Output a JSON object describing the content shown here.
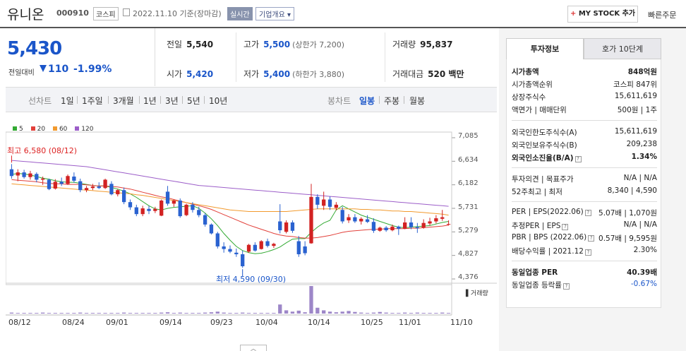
{
  "header": {
    "stock_name": "유니온",
    "stock_code": "000910",
    "market": "코스피",
    "date": "2022.11.10 기준(장마감)",
    "live_label": "실시간",
    "company_label": "기업개요 ▾",
    "mystock_label": "MY STOCK 추가",
    "quick_order": "빠른주문"
  },
  "price": {
    "current": "5,430",
    "change_label": "전일대비",
    "change": "110",
    "change_pct": "-1.99%",
    "colors": {
      "down": "#1a55c9",
      "up": "#d22222"
    }
  },
  "stats": {
    "prev_label": "전일",
    "prev": "5,540",
    "high_label": "고가",
    "high": "5,500",
    "upper_limit": "(상한가 7,200)",
    "volume_label": "거래량",
    "volume": "95,837",
    "open_label": "시가",
    "open": "5,420",
    "low_label": "저가",
    "low": "5,400",
    "lower_limit": "(하한가 3,880)",
    "amount_label": "거래대금",
    "amount": "520 백만"
  },
  "tabs": {
    "line_label": "선차트",
    "periods": [
      "1일",
      "1주일",
      "3개월",
      "1년",
      "3년",
      "5년",
      "10년"
    ],
    "candle_label": "봉차트",
    "candles": [
      "일봉",
      "주봉",
      "월봉"
    ],
    "selected_candle": "일봉"
  },
  "chart_data": {
    "type": "candlestick",
    "legend": [
      {
        "name": "5",
        "color": "#33aa33"
      },
      {
        "name": "20",
        "color": "#e2403a"
      },
      {
        "name": "60",
        "color": "#f29a2e"
      },
      {
        "name": "120",
        "color": "#9c5ec9"
      }
    ],
    "y_ticks": [
      "7,085",
      "6,634",
      "6,182",
      "5,731",
      "5,279",
      "4,827",
      "4,376"
    ],
    "ylim": [
      4376,
      7085
    ],
    "x_ticks": [
      "08/12",
      "08/24",
      "09/01",
      "09/14",
      "09/23",
      "10/04",
      "10/14",
      "10/25",
      "11/01",
      "11/10"
    ],
    "high_label": "최고 6,580 (08/12)",
    "low_label": "최저 4,590 (09/30)",
    "volume_label": "거래량",
    "candles": [
      {
        "o": 6480,
        "h": 6580,
        "l": 6300,
        "c": 6350
      },
      {
        "o": 6360,
        "h": 6480,
        "l": 6250,
        "c": 6420
      },
      {
        "o": 6420,
        "h": 6470,
        "l": 6300,
        "c": 6330
      },
      {
        "o": 6330,
        "h": 6450,
        "l": 6280,
        "c": 6400
      },
      {
        "o": 6390,
        "h": 6420,
        "l": 6230,
        "c": 6280
      },
      {
        "o": 6280,
        "h": 6340,
        "l": 6180,
        "c": 6300
      },
      {
        "o": 6280,
        "h": 6300,
        "l": 6080,
        "c": 6100
      },
      {
        "o": 6110,
        "h": 6290,
        "l": 6090,
        "c": 6240
      },
      {
        "o": 6240,
        "h": 6320,
        "l": 6160,
        "c": 6200
      },
      {
        "o": 6200,
        "h": 6380,
        "l": 6180,
        "c": 6350
      },
      {
        "o": 6340,
        "h": 6420,
        "l": 6220,
        "c": 6260
      },
      {
        "o": 6250,
        "h": 6300,
        "l": 6040,
        "c": 6080
      },
      {
        "o": 6080,
        "h": 6160,
        "l": 6040,
        "c": 6120
      },
      {
        "o": 6120,
        "h": 6200,
        "l": 6080,
        "c": 6150
      },
      {
        "o": 6150,
        "h": 6230,
        "l": 6100,
        "c": 6120
      },
      {
        "o": 6120,
        "h": 6300,
        "l": 6100,
        "c": 6280
      },
      {
        "o": 6200,
        "h": 6250,
        "l": 5980,
        "c": 6000
      },
      {
        "o": 6000,
        "h": 6100,
        "l": 5960,
        "c": 6080
      },
      {
        "o": 6080,
        "h": 6130,
        "l": 5810,
        "c": 5850
      },
      {
        "o": 5850,
        "h": 5900,
        "l": 5700,
        "c": 5750
      },
      {
        "o": 5750,
        "h": 5800,
        "l": 5580,
        "c": 5620
      },
      {
        "o": 5620,
        "h": 5780,
        "l": 5580,
        "c": 5730
      },
      {
        "o": 5720,
        "h": 5780,
        "l": 5620,
        "c": 5680
      },
      {
        "o": 5680,
        "h": 5760,
        "l": 5640,
        "c": 5720
      },
      {
        "o": 5590,
        "h": 5900,
        "l": 5580,
        "c": 5880
      },
      {
        "o": 6050,
        "h": 6160,
        "l": 5780,
        "c": 5820
      },
      {
        "o": 5820,
        "h": 5900,
        "l": 5760,
        "c": 5880
      },
      {
        "o": 5880,
        "h": 5920,
        "l": 5550,
        "c": 5580
      },
      {
        "o": 5600,
        "h": 5820,
        "l": 5580,
        "c": 5800
      },
      {
        "o": 5800,
        "h": 5850,
        "l": 5650,
        "c": 5700
      },
      {
        "o": 5700,
        "h": 5760,
        "l": 5560,
        "c": 5600
      },
      {
        "o": 5600,
        "h": 5640,
        "l": 5380,
        "c": 5420
      },
      {
        "o": 5420,
        "h": 5440,
        "l": 5230,
        "c": 5250
      },
      {
        "o": 5250,
        "h": 5280,
        "l": 4960,
        "c": 5000
      },
      {
        "o": 5000,
        "h": 5080,
        "l": 4880,
        "c": 4950
      },
      {
        "o": 4950,
        "h": 5020,
        "l": 4870,
        "c": 4900
      },
      {
        "o": 4880,
        "h": 4960,
        "l": 4800,
        "c": 4850
      },
      {
        "o": 4850,
        "h": 4920,
        "l": 4590,
        "c": 4620
      },
      {
        "o": 4900,
        "h": 5050,
        "l": 4880,
        "c": 5030
      },
      {
        "o": 5030,
        "h": 5080,
        "l": 4900,
        "c": 4920
      },
      {
        "o": 4950,
        "h": 5120,
        "l": 4940,
        "c": 5100
      },
      {
        "o": 5100,
        "h": 5150,
        "l": 4980,
        "c": 5010
      },
      {
        "o": 5010,
        "h": 5070,
        "l": 4970,
        "c": 5050
      },
      {
        "o": 5480,
        "h": 5810,
        "l": 5250,
        "c": 5310
      },
      {
        "o": 5280,
        "h": 5500,
        "l": 5250,
        "c": 5460
      },
      {
        "o": 5460,
        "h": 5500,
        "l": 5260,
        "c": 5300
      },
      {
        "o": 5100,
        "h": 5200,
        "l": 4800,
        "c": 4850
      },
      {
        "o": 5000,
        "h": 5100,
        "l": 4830,
        "c": 4870
      },
      {
        "o": 5060,
        "h": 6200,
        "l": 5050,
        "c": 5950
      },
      {
        "o": 5950,
        "h": 6000,
        "l": 5720,
        "c": 5800
      },
      {
        "o": 5780,
        "h": 6050,
        "l": 5700,
        "c": 5900
      },
      {
        "o": 5900,
        "h": 5960,
        "l": 5700,
        "c": 5760
      },
      {
        "o": 5740,
        "h": 5850,
        "l": 5690,
        "c": 5800
      },
      {
        "o": 5700,
        "h": 5760,
        "l": 5440,
        "c": 5480
      },
      {
        "o": 5500,
        "h": 5620,
        "l": 5450,
        "c": 5560
      },
      {
        "o": 5560,
        "h": 5620,
        "l": 5450,
        "c": 5480
      },
      {
        "o": 5480,
        "h": 5560,
        "l": 5420,
        "c": 5530
      },
      {
        "o": 5520,
        "h": 5600,
        "l": 5450,
        "c": 5470
      },
      {
        "o": 5470,
        "h": 5540,
        "l": 5260,
        "c": 5300
      },
      {
        "o": 5300,
        "h": 5380,
        "l": 5280,
        "c": 5360
      },
      {
        "o": 5360,
        "h": 5390,
        "l": 5280,
        "c": 5310
      },
      {
        "o": 5310,
        "h": 5420,
        "l": 5290,
        "c": 5380
      },
      {
        "o": 5380,
        "h": 5400,
        "l": 5220,
        "c": 5340
      },
      {
        "o": 5340,
        "h": 5560,
        "l": 5330,
        "c": 5460
      },
      {
        "o": 5460,
        "h": 5560,
        "l": 5330,
        "c": 5370
      },
      {
        "o": 5370,
        "h": 5450,
        "l": 5260,
        "c": 5350
      },
      {
        "o": 5360,
        "h": 5520,
        "l": 5340,
        "c": 5450
      },
      {
        "o": 5440,
        "h": 5550,
        "l": 5400,
        "c": 5480
      },
      {
        "o": 5480,
        "h": 5600,
        "l": 5440,
        "c": 5540
      },
      {
        "o": 5530,
        "h": 5700,
        "l": 5490,
        "c": 5560
      },
      {
        "o": 5420,
        "h": 5500,
        "l": 5400,
        "c": 5430
      }
    ],
    "ma5": [
      6380,
      6400,
      6390,
      6370,
      6340,
      6310,
      6290,
      6260,
      6240,
      6230,
      6230,
      6210,
      6190,
      6170,
      6160,
      6160,
      6130,
      6100,
      6060,
      6010,
      5940,
      5860,
      5780,
      5720,
      5700,
      5730,
      5750,
      5760,
      5770,
      5780,
      5730,
      5640,
      5530,
      5400,
      5250,
      5120,
      5000,
      4920,
      4880,
      4860,
      4870,
      4900,
      4940,
      4990,
      5070,
      5140,
      5150,
      5150,
      5270,
      5370,
      5450,
      5500,
      5700,
      5780,
      5720,
      5660,
      5600,
      5560,
      5520,
      5480,
      5440,
      5400,
      5370,
      5360,
      5370,
      5380,
      5390,
      5400,
      5430,
      5460,
      5480
    ],
    "ma20": [
      6280,
      6270,
      6260,
      6250,
      6240,
      6220,
      6210,
      6200,
      6200,
      6190,
      6190,
      6190,
      6180,
      6170,
      6160,
      6160,
      6150,
      6140,
      6120,
      6100,
      6070,
      6040,
      6010,
      5980,
      5950,
      5930,
      5900,
      5870,
      5840,
      5810,
      5780,
      5750,
      5710,
      5660,
      5610,
      5560,
      5510,
      5460,
      5410,
      5370,
      5330,
      5290,
      5250,
      5220,
      5200,
      5190,
      5170,
      5160,
      5160,
      5170,
      5190,
      5210,
      5240,
      5270,
      5290,
      5300,
      5310,
      5320,
      5330,
      5330,
      5340,
      5340,
      5340,
      5340,
      5350,
      5350,
      5360,
      5370,
      5380,
      5390,
      5410
    ],
    "ma60": [
      6200,
      6190,
      6180,
      6170,
      6160,
      6150,
      6140,
      6130,
      6120,
      6110,
      6100,
      6090,
      6080,
      6070,
      6060,
      6050,
      6040,
      6030,
      6020,
      6010,
      5990,
      5980,
      5960,
      5940,
      5920,
      5900,
      5880,
      5860,
      5840,
      5820,
      5800,
      5780,
      5760,
      5740,
      5720,
      5700,
      5690,
      5680,
      5670,
      5670,
      5670,
      5670,
      5670,
      5670,
      5670,
      5680,
      5690,
      5700,
      5710,
      5720,
      5720,
      5720,
      5720,
      5720,
      5720,
      5720,
      5710,
      5710,
      5700,
      5700,
      5690,
      5680,
      5680,
      5670,
      5670,
      5660,
      5650,
      5640,
      5630,
      5620,
      5600
    ],
    "ma120": [
      6650,
      6640,
      6630,
      6620,
      6610,
      6600,
      6590,
      6580,
      6570,
      6560,
      6550,
      6540,
      6530,
      6510,
      6490,
      6470,
      6450,
      6430,
      6410,
      6390,
      6370,
      6350,
      6330,
      6310,
      6290,
      6270,
      6250,
      6230,
      6210,
      6190,
      6170,
      6160,
      6150,
      6140,
      6130,
      6120,
      6110,
      6100,
      6090,
      6080,
      6070,
      6060,
      6050,
      6040,
      6030,
      6020,
      6010,
      6000,
      5990,
      5980,
      5970,
      5960,
      5950,
      5940,
      5930,
      5920,
      5910,
      5900,
      5890,
      5880,
      5870,
      5860,
      5850,
      5840,
      5830,
      5820,
      5810,
      5800,
      5790,
      5780,
      5770
    ],
    "volume": [
      3,
      2,
      2,
      2,
      2,
      3,
      2,
      2,
      2,
      2,
      2,
      3,
      2,
      2,
      2,
      2,
      2,
      2,
      3,
      2,
      2,
      2,
      2,
      2,
      3,
      4,
      2,
      3,
      2,
      2,
      2,
      3,
      4,
      6,
      3,
      2,
      2,
      3,
      2,
      2,
      2,
      2,
      2,
      28,
      10,
      6,
      9,
      4,
      85,
      18,
      10,
      6,
      4,
      6,
      8,
      5,
      3,
      2,
      3,
      5,
      3,
      2,
      2,
      3,
      2,
      3,
      2,
      2,
      2,
      3,
      2
    ],
    "volume_max": 85
  },
  "invest": {
    "tab_on": "투자정보",
    "tab_off": "호가 10단계",
    "rows": [
      {
        "k": "시가총액",
        "v": "848억원"
      },
      {
        "k": "시가총액순위",
        "v": "코스피 847위"
      },
      {
        "k": "상장주식수",
        "v": "15,611,619"
      },
      {
        "k": "액면가 | 매매단위",
        "v": "500원 | 1주"
      },
      {
        "k": "외국인한도주식수(A)",
        "v": "15,611,619"
      },
      {
        "k": "외국인보유주식수(B)",
        "v": "209,238"
      },
      {
        "k": "외국인소진율(B/A)",
        "v": "1.34%"
      },
      {
        "k": "투자의견 | 목표주가",
        "v": "N/A | N/A"
      },
      {
        "k": "52주최고 | 최저",
        "v": "8,340 | 4,590"
      },
      {
        "k": "PER | EPS(2022.06)",
        "v": "5.07배 | 1,070원"
      },
      {
        "k": "추정PER | EPS",
        "v": "N/A | N/A"
      },
      {
        "k": "PBR | BPS (2022.06)",
        "v": "0.57배 | 9,595원"
      },
      {
        "k": "배당수익률 | 2021.12",
        "v": "2.30%"
      },
      {
        "k": "동일업종 PER",
        "v": "40.39배"
      },
      {
        "k": "동일업종 등락률",
        "v": "-0.67%"
      }
    ]
  }
}
